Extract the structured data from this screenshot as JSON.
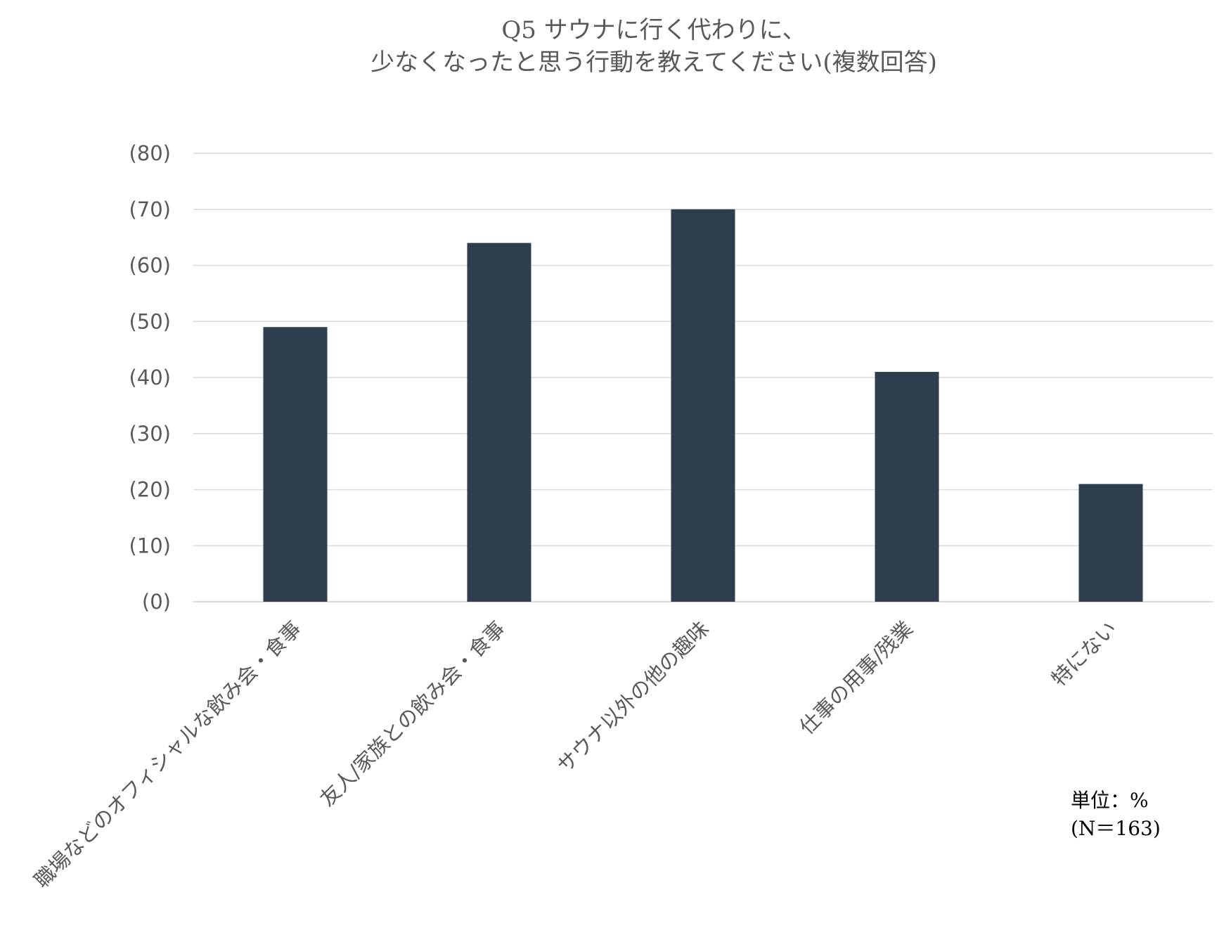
{
  "chart_data": {
    "type": "bar",
    "title_lines": [
      "Q5  サウナに行く代わりに、",
      "少なくなったと思う行動を教えてください(複数回答)"
    ],
    "categories": [
      "職場などのオフィシャルな飲み会・食事",
      "友人/家族との飲み会・食事",
      "サウナ以外の他の趣味",
      "仕事の用事/残業",
      "特にない"
    ],
    "values": [
      49,
      64,
      70,
      41,
      21
    ],
    "y_ticks": [
      0,
      10,
      20,
      30,
      40,
      50,
      60,
      70,
      80
    ],
    "y_tick_labels": [
      "(0)",
      "(10)",
      "(20)",
      "(30)",
      "(40)",
      "(50)",
      "(60)",
      "(70)",
      "(80)"
    ],
    "ylim": [
      0,
      80
    ],
    "grid": true,
    "bar_color": "#2f3e4f",
    "grid_color": "#d9d9d9",
    "text_color": "#595959",
    "note_lines": [
      "単位：%",
      "(N＝163)"
    ]
  }
}
